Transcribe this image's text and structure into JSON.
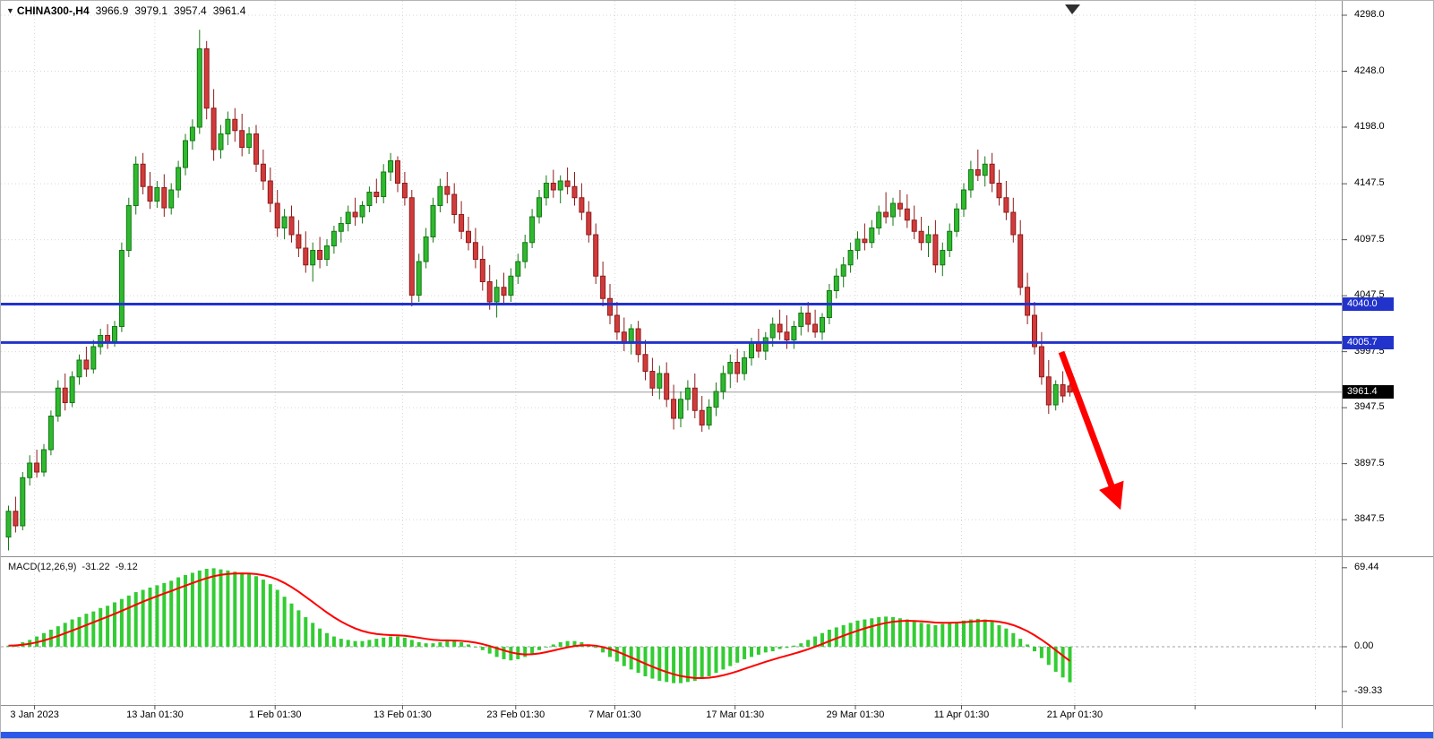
{
  "header": {
    "collapse_icon": "▼",
    "symbol": "CHINA300-,H4",
    "open": "3966.9",
    "high": "3979.1",
    "low": "3957.4",
    "close": "3961.4"
  },
  "price_axis": {
    "labels": [
      "4298.0",
      "4248.0",
      "4198.0",
      "4147.5",
      "4097.5",
      "4047.5",
      "3997.5",
      "3947.5",
      "3897.5",
      "3847.5"
    ]
  },
  "time_axis": {
    "ticks": [
      {
        "i": 4,
        "label": "3 Jan 2023"
      },
      {
        "i": 21,
        "label": "13 Jan 01:30"
      },
      {
        "i": 38,
        "label": "1 Feb 01:30"
      },
      {
        "i": 56,
        "label": "13 Feb 01:30"
      },
      {
        "i": 72,
        "label": "23 Feb 01:30"
      },
      {
        "i": 86,
        "label": "7 Mar 01:30"
      },
      {
        "i": 103,
        "label": "17 Mar 01:30"
      },
      {
        "i": 120,
        "label": "29 Mar 01:30"
      },
      {
        "i": 135,
        "label": "11 Apr 01:30"
      },
      {
        "i": 151,
        "label": "21 Apr 01:30"
      },
      {
        "i": 168,
        "label": ""
      },
      {
        "i": 185,
        "label": ""
      }
    ]
  },
  "levels": [
    {
      "price": 4040.0,
      "label": "4040.0"
    },
    {
      "price": 4005.7,
      "label": "4005.7"
    }
  ],
  "current_price": {
    "price": 3961.4,
    "label": "3961.4"
  },
  "macd_panel": {
    "label": "MACD(12,26,9)",
    "value_main": "-31.22",
    "value_signal": "-9.12",
    "axis_labels": [
      {
        "v": 69.44,
        "label": "69.44"
      },
      {
        "v": 0,
        "label": "0.00"
      },
      {
        "v": -39.33,
        "label": "-39.33"
      }
    ]
  },
  "colors": {
    "up": "#2fb92f",
    "up_border": "#147814",
    "down": "#d23b3b",
    "down_border": "#8f1b1b",
    "level_line": "#2233cc",
    "grid": "#d6d6d6",
    "macd_hist": "#33cc33",
    "macd_signal": "#ff0000",
    "arrow": "#ff0000",
    "current_tag_bg": "#000000",
    "bottom_bar": "#2e59e8",
    "separator": "#8c8c8c",
    "current_price_line": "#9a9a9a",
    "zero_line": "#a0a0a0"
  },
  "chart_data": {
    "type": "candlestick",
    "symbol": "CHINA300-",
    "timeframe": "H4",
    "title": "CHINA300-,H4 3966.9 3979.1 3957.4 3961.4",
    "y_axis_range": [
      3847.5,
      4298.0
    ],
    "macd_axis_range": [
      -39.33,
      69.44
    ],
    "horizontal_levels": [
      4040.0,
      4005.7
    ],
    "last_price": 3961.4,
    "current_ohlc": {
      "open": 3966.9,
      "high": 3979.1,
      "low": 3957.4,
      "close": 3961.4
    },
    "candles_ohlc": [
      [
        3832,
        3860,
        3820,
        3855
      ],
      [
        3855,
        3868,
        3836,
        3842
      ],
      [
        3842,
        3890,
        3838,
        3885
      ],
      [
        3885,
        3905,
        3878,
        3898
      ],
      [
        3898,
        3910,
        3885,
        3890
      ],
      [
        3890,
        3915,
        3886,
        3910
      ],
      [
        3910,
        3945,
        3905,
        3940
      ],
      [
        3940,
        3972,
        3935,
        3965
      ],
      [
        3965,
        3978,
        3945,
        3952
      ],
      [
        3952,
        3980,
        3948,
        3975
      ],
      [
        3975,
        3995,
        3968,
        3990
      ],
      [
        3990,
        4002,
        3975,
        3982
      ],
      [
        3982,
        4008,
        3978,
        4002
      ],
      [
        4002,
        4018,
        3995,
        4012
      ],
      [
        4012,
        4022,
        4000,
        4006
      ],
      [
        4006,
        4025,
        4002,
        4020
      ],
      [
        4020,
        4095,
        4015,
        4088
      ],
      [
        4088,
        4135,
        4082,
        4128
      ],
      [
        4128,
        4172,
        4120,
        4165
      ],
      [
        4165,
        4175,
        4138,
        4145
      ],
      [
        4145,
        4158,
        4125,
        4132
      ],
      [
        4132,
        4150,
        4126,
        4144
      ],
      [
        4144,
        4156,
        4118,
        4126
      ],
      [
        4126,
        4148,
        4120,
        4142
      ],
      [
        4142,
        4168,
        4135,
        4162
      ],
      [
        4162,
        4192,
        4155,
        4186
      ],
      [
        4186,
        4205,
        4178,
        4198
      ],
      [
        4198,
        4285,
        4192,
        4268
      ],
      [
        4268,
        4275,
        4205,
        4215
      ],
      [
        4215,
        4232,
        4168,
        4178
      ],
      [
        4178,
        4200,
        4170,
        4192
      ],
      [
        4192,
        4212,
        4182,
        4205
      ],
      [
        4205,
        4215,
        4185,
        4195
      ],
      [
        4195,
        4210,
        4172,
        4180
      ],
      [
        4180,
        4198,
        4174,
        4192
      ],
      [
        4192,
        4200,
        4158,
        4165
      ],
      [
        4165,
        4178,
        4142,
        4150
      ],
      [
        4150,
        4162,
        4122,
        4130
      ],
      [
        4130,
        4142,
        4100,
        4108
      ],
      [
        4108,
        4125,
        4098,
        4118
      ],
      [
        4118,
        4128,
        4095,
        4102
      ],
      [
        4102,
        4115,
        4082,
        4090
      ],
      [
        4090,
        4105,
        4068,
        4075
      ],
      [
        4075,
        4095,
        4060,
        4088
      ],
      [
        4088,
        4100,
        4072,
        4080
      ],
      [
        4080,
        4098,
        4074,
        4092
      ],
      [
        4092,
        4110,
        4085,
        4105
      ],
      [
        4105,
        4118,
        4095,
        4112
      ],
      [
        4112,
        4128,
        4105,
        4122
      ],
      [
        4122,
        4135,
        4110,
        4118
      ],
      [
        4118,
        4132,
        4112,
        4128
      ],
      [
        4128,
        4145,
        4122,
        4140
      ],
      [
        4140,
        4152,
        4130,
        4136
      ],
      [
        4136,
        4165,
        4130,
        4158
      ],
      [
        4158,
        4175,
        4150,
        4168
      ],
      [
        4168,
        4172,
        4140,
        4148
      ],
      [
        4148,
        4158,
        4128,
        4135
      ],
      [
        4135,
        4142,
        4038,
        4048
      ],
      [
        4048,
        4085,
        4042,
        4078
      ],
      [
        4078,
        4108,
        4072,
        4100
      ],
      [
        4100,
        4135,
        4095,
        4128
      ],
      [
        4128,
        4152,
        4122,
        4145
      ],
      [
        4145,
        4158,
        4130,
        4138
      ],
      [
        4138,
        4148,
        4112,
        4120
      ],
      [
        4120,
        4132,
        4098,
        4105
      ],
      [
        4105,
        4118,
        4088,
        4095
      ],
      [
        4095,
        4108,
        4072,
        4080
      ],
      [
        4080,
        4092,
        4052,
        4060
      ],
      [
        4060,
        4075,
        4035,
        4042
      ],
      [
        4042,
        4062,
        4028,
        4055
      ],
      [
        4055,
        4068,
        4040,
        4048
      ],
      [
        4048,
        4072,
        4042,
        4065
      ],
      [
        4065,
        4085,
        4058,
        4078
      ],
      [
        4078,
        4102,
        4072,
        4095
      ],
      [
        4095,
        4125,
        4090,
        4118
      ],
      [
        4118,
        4142,
        4112,
        4135
      ],
      [
        4135,
        4155,
        4128,
        4148
      ],
      [
        4148,
        4160,
        4135,
        4142
      ],
      [
        4142,
        4155,
        4130,
        4150
      ],
      [
        4150,
        4162,
        4138,
        4145
      ],
      [
        4145,
        4158,
        4128,
        4135
      ],
      [
        4135,
        4148,
        4115,
        4122
      ],
      [
        4122,
        4132,
        4095,
        4102
      ],
      [
        4102,
        4112,
        4058,
        4065
      ],
      [
        4065,
        4078,
        4038,
        4045
      ],
      [
        4045,
        4058,
        4022,
        4030
      ],
      [
        4030,
        4042,
        4008,
        4015
      ],
      [
        4015,
        4028,
        3998,
        4005
      ],
      [
        4005,
        4022,
        3995,
        4018
      ],
      [
        4018,
        4025,
        3988,
        3995
      ],
      [
        3995,
        4008,
        3972,
        3980
      ],
      [
        3980,
        3992,
        3958,
        3965
      ],
      [
        3965,
        3985,
        3955,
        3978
      ],
      [
        3978,
        3988,
        3948,
        3955
      ],
      [
        3955,
        3968,
        3928,
        3938
      ],
      [
        3938,
        3962,
        3930,
        3955
      ],
      [
        3955,
        3972,
        3945,
        3965
      ],
      [
        3965,
        3978,
        3938,
        3945
      ],
      [
        3945,
        3958,
        3926,
        3932
      ],
      [
        3932,
        3955,
        3928,
        3948
      ],
      [
        3948,
        3970,
        3940,
        3962
      ],
      [
        3962,
        3985,
        3955,
        3978
      ],
      [
        3978,
        3995,
        3965,
        3988
      ],
      [
        3988,
        4000,
        3970,
        3978
      ],
      [
        3978,
        3998,
        3972,
        3992
      ],
      [
        3992,
        4010,
        3985,
        4005
      ],
      [
        4005,
        4018,
        3992,
        3998
      ],
      [
        3998,
        4015,
        3990,
        4010
      ],
      [
        4010,
        4028,
        4002,
        4022
      ],
      [
        4022,
        4035,
        4008,
        4015
      ],
      [
        4015,
        4030,
        4000,
        4008
      ],
      [
        4008,
        4025,
        4000,
        4020
      ],
      [
        4020,
        4038,
        4012,
        4032
      ],
      [
        4032,
        4042,
        4015,
        4022
      ],
      [
        4022,
        4035,
        4010,
        4015
      ],
      [
        4015,
        4032,
        4008,
        4028
      ],
      [
        4028,
        4058,
        4022,
        4052
      ],
      [
        4052,
        4072,
        4045,
        4065
      ],
      [
        4065,
        4082,
        4055,
        4075
      ],
      [
        4075,
        4095,
        4068,
        4088
      ],
      [
        4088,
        4105,
        4080,
        4098
      ],
      [
        4098,
        4112,
        4088,
        4095
      ],
      [
        4095,
        4115,
        4090,
        4108
      ],
      [
        4108,
        4128,
        4102,
        4122
      ],
      [
        4122,
        4140,
        4112,
        4118
      ],
      [
        4118,
        4135,
        4110,
        4130
      ],
      [
        4130,
        4142,
        4118,
        4125
      ],
      [
        4125,
        4138,
        4108,
        4115
      ],
      [
        4115,
        4128,
        4098,
        4105
      ],
      [
        4105,
        4118,
        4088,
        4095
      ],
      [
        4095,
        4110,
        4082,
        4102
      ],
      [
        4102,
        4115,
        4068,
        4075
      ],
      [
        4075,
        4095,
        4065,
        4088
      ],
      [
        4088,
        4112,
        4082,
        4105
      ],
      [
        4105,
        4130,
        4100,
        4125
      ],
      [
        4125,
        4148,
        4118,
        4142
      ],
      [
        4142,
        4168,
        4135,
        4160
      ],
      [
        4160,
        4178,
        4150,
        4155
      ],
      [
        4155,
        4172,
        4145,
        4165
      ],
      [
        4165,
        4175,
        4140,
        4148
      ],
      [
        4148,
        4160,
        4128,
        4135
      ],
      [
        4135,
        4150,
        4115,
        4122
      ],
      [
        4122,
        4135,
        4095,
        4102
      ],
      [
        4102,
        4115,
        4048,
        4055
      ],
      [
        4055,
        4068,
        4022,
        4030
      ],
      [
        4030,
        4042,
        3995,
        4002
      ],
      [
        4002,
        4015,
        3968,
        3975
      ],
      [
        3975,
        3990,
        3942,
        3950
      ],
      [
        3950,
        3972,
        3945,
        3968
      ],
      [
        3968,
        3980,
        3952,
        3958
      ],
      [
        3966.9,
        3979.1,
        3957.4,
        3961.4
      ]
    ],
    "macd_values": [
      1,
      2,
      4,
      6,
      9,
      12,
      15,
      18,
      21,
      24,
      26,
      29,
      31,
      34,
      36,
      39,
      42,
      45,
      48,
      50,
      52,
      54,
      56,
      58,
      61,
      63,
      65,
      67,
      68.5,
      69,
      68,
      67,
      66,
      65,
      64,
      62,
      59,
      55,
      50,
      44,
      38,
      32,
      26,
      21,
      16,
      12,
      9,
      7,
      6,
      5,
      5,
      6,
      7,
      8,
      9,
      9,
      8,
      6,
      4,
      3,
      3,
      4,
      5,
      5,
      4,
      2,
      0,
      -3,
      -6,
      -9,
      -11,
      -12,
      -11,
      -9,
      -6,
      -3,
      0,
      2,
      4,
      5,
      5,
      4,
      2,
      -1,
      -5,
      -9,
      -13,
      -17,
      -20,
      -23,
      -26,
      -28,
      -30,
      -31,
      -32,
      -32,
      -31,
      -30,
      -28,
      -26,
      -23,
      -20,
      -17,
      -14,
      -11,
      -9,
      -7,
      -5,
      -4,
      -2,
      -1,
      1,
      3,
      6,
      9,
      12,
      15,
      17,
      19,
      21,
      23,
      24,
      25,
      26,
      26.5,
      26,
      25,
      24,
      22,
      21,
      20,
      19,
      20,
      21,
      22,
      23,
      24,
      24.5,
      24,
      22,
      19,
      16,
      12,
      7,
      2,
      -4,
      -10,
      -16,
      -22,
      -27,
      -31.22
    ]
  }
}
